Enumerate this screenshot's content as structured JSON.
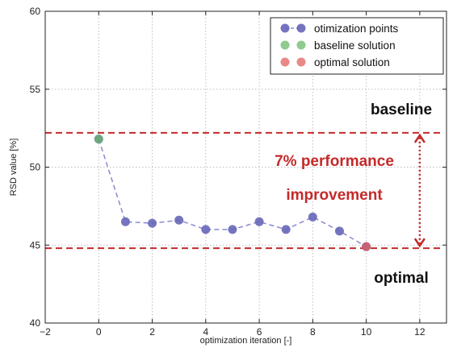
{
  "chart_data": {
    "type": "scatter",
    "xlabel": "optimization iteration [-]",
    "ylabel": "RSD value [%]",
    "xlim": [
      -2,
      13
    ],
    "ylim": [
      40,
      60
    ],
    "xticks": [
      -2,
      0,
      2,
      4,
      6,
      8,
      10,
      12
    ],
    "yticks": [
      40,
      45,
      50,
      55,
      60
    ],
    "grid": true,
    "legend_position": "top-right",
    "series": [
      {
        "name": "otimization points",
        "color": "#6666b8",
        "x": [
          0,
          1,
          2,
          3,
          4,
          5,
          6,
          7,
          8,
          9,
          10
        ],
        "y": [
          51.8,
          46.5,
          46.4,
          46.6,
          46.0,
          46.0,
          46.5,
          46.0,
          46.8,
          45.9,
          44.9
        ]
      },
      {
        "name": "baseline solution",
        "color": "#6ab86a",
        "x": [
          0
        ],
        "y": [
          51.8
        ]
      },
      {
        "name": "optimal solution",
        "color": "#e06060",
        "x": [
          10
        ],
        "y": [
          44.9
        ]
      }
    ],
    "reference_lines": [
      {
        "label": "baseline",
        "y": 52.2,
        "color": "#c42a2a"
      },
      {
        "label": "optimal",
        "y": 44.8,
        "color": "#c42a2a"
      }
    ],
    "annotation": {
      "line1": "7% performance",
      "line2": "improvement",
      "x": 12,
      "color": "#c42a2a"
    }
  }
}
